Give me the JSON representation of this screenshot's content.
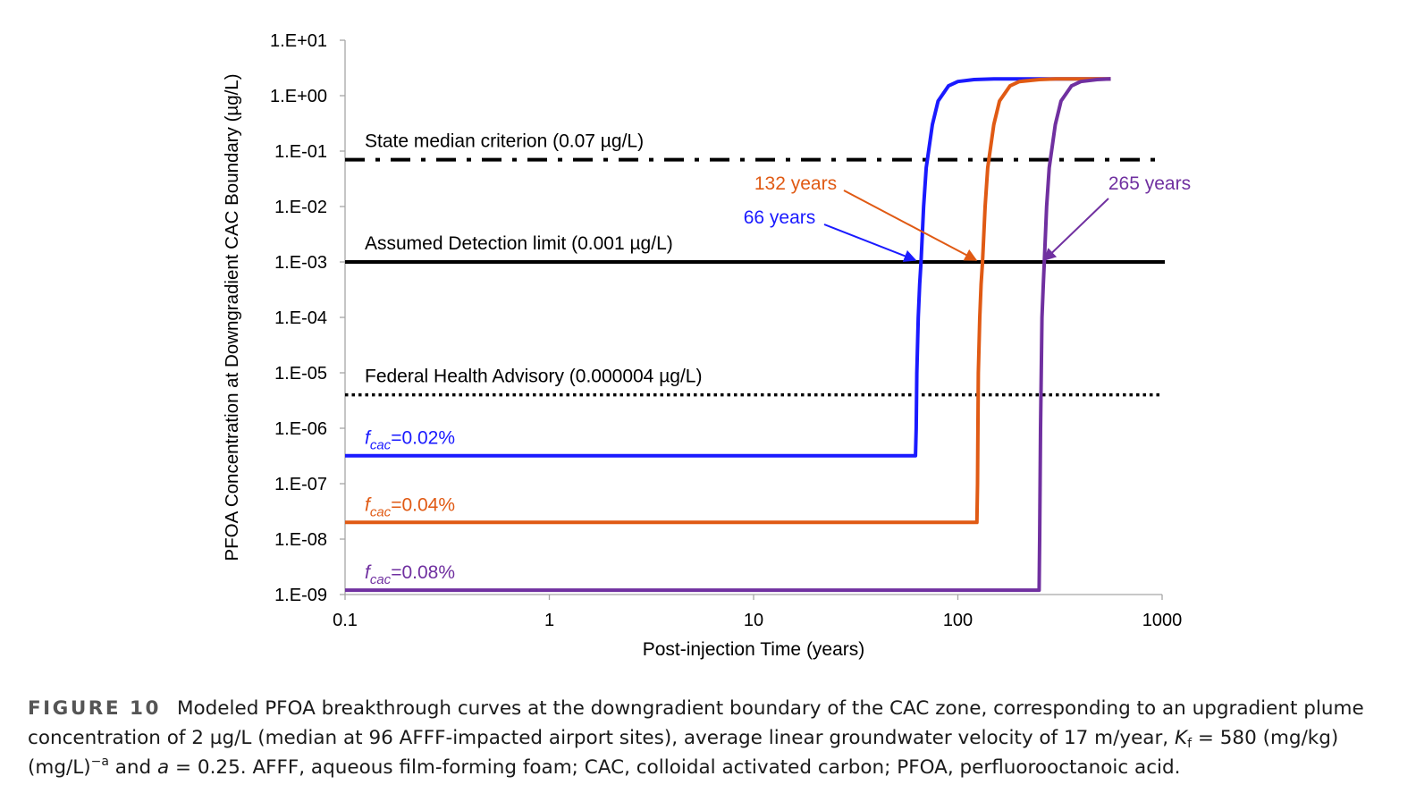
{
  "chart_data": {
    "type": "line",
    "x_scale": "log",
    "y_scale": "log",
    "xlim": [
      0.1,
      1000
    ],
    "ylim": [
      1e-09,
      10
    ],
    "xlabel": "Post-injection Time (years)",
    "ylabel": "PFOA Concentration at Downgradient CAC Boundary (µg/L)",
    "x_tick_labels": [
      "0.1",
      "1",
      "10",
      "100",
      "1000"
    ],
    "y_tick_labels": [
      "1.E+01",
      "1.E+00",
      "1.E-01",
      "1.E-02",
      "1.E-03",
      "1.E-04",
      "1.E-05",
      "1.E-06",
      "1.E-07",
      "1.E-08",
      "1.E-09"
    ],
    "grid": false,
    "series": [
      {
        "name": "fcac=0.02%",
        "label_main": "f",
        "label_sub": "cac",
        "label_rest": "=0.02%",
        "color": "#1a1aff",
        "x": [
          0.1,
          62,
          62.5,
          63,
          64,
          65,
          66,
          68,
          70,
          75,
          80,
          90,
          100,
          120,
          150,
          200,
          300,
          560
        ],
        "y": [
          3.2e-07,
          3.2e-07,
          1e-06,
          1e-05,
          0.0001,
          0.0004,
          0.001,
          0.01,
          0.05,
          0.3,
          0.8,
          1.5,
          1.8,
          1.95,
          2.0,
          2.0,
          2.0,
          2.0
        ]
      },
      {
        "name": "fcac=0.04%",
        "label_main": "f",
        "label_sub": "cac",
        "label_rest": "=0.04%",
        "color": "#e05a14",
        "x": [
          0.1,
          124,
          124.8,
          126,
          128,
          130,
          132,
          136,
          140,
          150,
          160,
          180,
          200,
          250,
          300,
          560
        ],
        "y": [
          2e-08,
          2e-08,
          1e-07,
          1e-05,
          0.0001,
          0.0004,
          0.001,
          0.01,
          0.05,
          0.3,
          0.8,
          1.5,
          1.8,
          1.95,
          2.0,
          2.0
        ]
      },
      {
        "name": "fcac=0.08%",
        "label_main": "f",
        "label_sub": "cac",
        "label_rest": "=0.08%",
        "color": "#7030a0",
        "x": [
          0.1,
          250,
          251.5,
          254,
          258,
          262,
          265,
          272,
          280,
          300,
          320,
          360,
          400,
          480,
          560
        ],
        "y": [
          1.2e-09,
          1.2e-09,
          1e-08,
          1e-06,
          0.0001,
          0.0004,
          0.001,
          0.01,
          0.05,
          0.3,
          0.8,
          1.5,
          1.8,
          1.95,
          2.0
        ]
      }
    ],
    "reference_lines": [
      {
        "label": "State median criterion (0.07 µg/L)",
        "y": 0.07,
        "style": "dash-dot",
        "color": "#000000"
      },
      {
        "label": "Assumed Detection limit (0.001 µg/L)",
        "y": 0.001,
        "style": "solid",
        "color": "#000000"
      },
      {
        "label": "Federal Health Advisory (0.000004 µg/L)",
        "y": 4e-06,
        "style": "dotted",
        "color": "#000000"
      }
    ],
    "annotations": [
      {
        "text": "66 years",
        "color": "#1a1aff",
        "x": 62,
        "y": 0.001
      },
      {
        "text": "132 years",
        "color": "#e05a14",
        "x": 123,
        "y": 0.001
      },
      {
        "text": "265 years",
        "color": "#7030a0",
        "x": 265,
        "y": 0.001
      }
    ]
  },
  "caption": {
    "label": "FIGURE 10",
    "text_1": "Modeled PFOA breakthrough curves at the downgradient boundary of the CAC zone, corresponding to an upgradient plume concentration of 2 µg/L (median at 96 AFFF-impacted airport sites), average linear groundwater velocity of 17 m/year, ",
    "k_symbol": "K",
    "k_sub": "f",
    "text_2": " = 580 (mg/kg) (mg/L)",
    "exp": "−a",
    "text_3": " and ",
    "a_symbol": "a",
    "text_4": " = 0.25. AFFF, aqueous film-forming foam; CAC, colloidal activated carbon; PFOA, perfluorooctanoic acid."
  }
}
